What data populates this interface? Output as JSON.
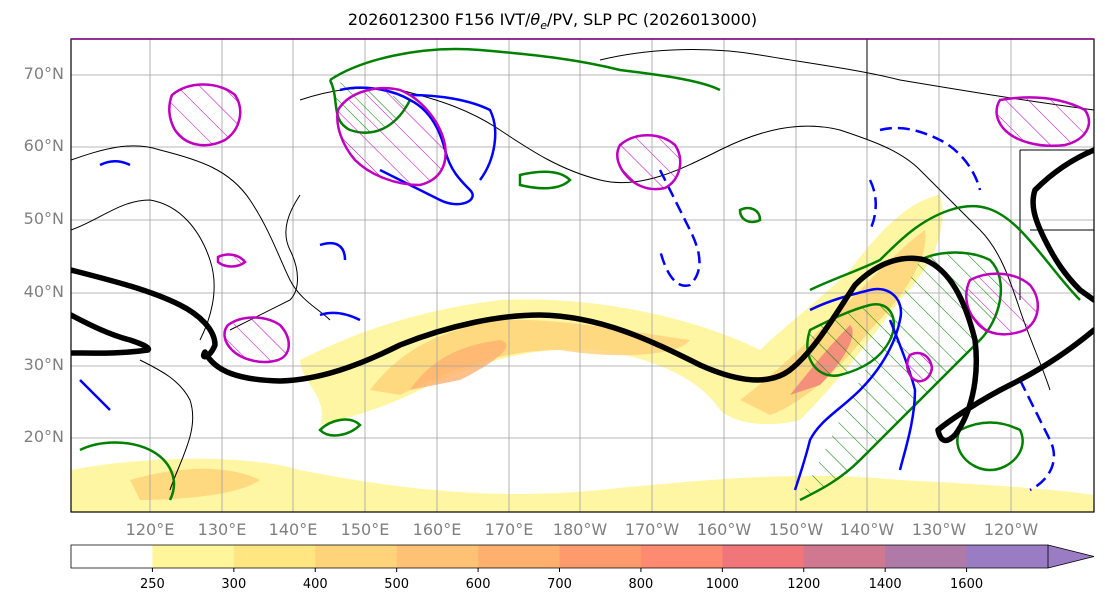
{
  "title": "2026012300 F156 IVT/θe/PV, SLP PC (2026013000)",
  "title_parts": {
    "prefix": "2026012300 F156 IVT/",
    "theta": "θ",
    "theta_sub": "e",
    "suffix": "/PV, SLP PC (2026013000)"
  },
  "lat_labels": [
    "70°N",
    "60°N",
    "50°N",
    "40°N",
    "30°N",
    "20°N"
  ],
  "lon_labels": [
    "120°E",
    "130°E",
    "140°E",
    "150°E",
    "160°E",
    "170°E",
    "180°W",
    "170°W",
    "160°W",
    "150°W",
    "140°W",
    "130°W",
    "120°W"
  ],
  "colorbar": {
    "ticks": [
      "250",
      "300",
      "400",
      "500",
      "600",
      "700",
      "800",
      "1000",
      "1200",
      "1400",
      "1600"
    ],
    "colors": [
      "#ffffff",
      "#fff59a",
      "#ffe680",
      "#ffd37a",
      "#ffc274",
      "#ffb06e",
      "#ff9a6c",
      "#ff8a72",
      "#f0767a",
      "#d07890",
      "#b07aa8",
      "#9a7cc4"
    ]
  },
  "colors": {
    "ivt_fill": "#ffd37a",
    "slp_contour": "#000000",
    "theta_e_contour": "#008000",
    "pv_contour_blue": "#0000ff",
    "pv_contour_magenta": "#c000c0",
    "coastline": "#000000",
    "grid": "#a0a0a0"
  }
}
